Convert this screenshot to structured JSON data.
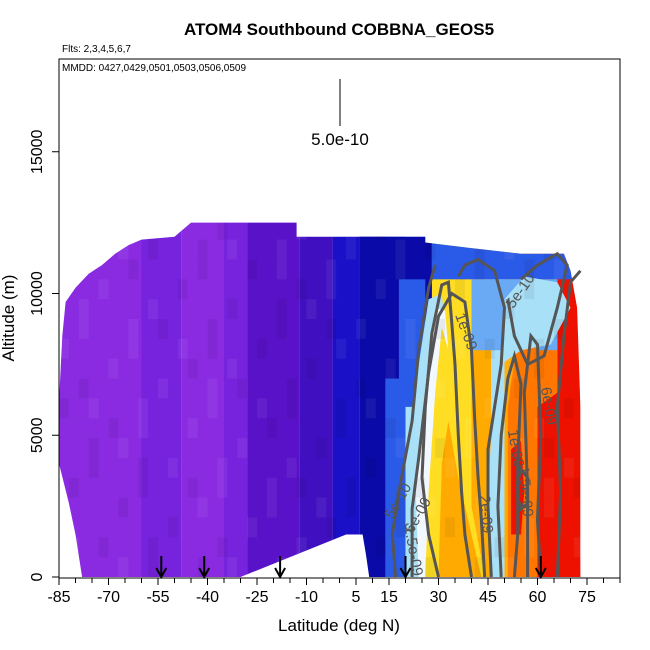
{
  "chart_data": {
    "type": "heatmap",
    "title": "ATOM4 Southbound COBBNA_GEOS5",
    "flights_text": "Flts: 2,3,4,5,6,7",
    "dates_text": "MMDD: 0427,0429,0501,0503,0506,0509",
    "xlabel": "Latitude (deg N)",
    "ylabel": "Altitude (m)",
    "xlim": [
      -85,
      85
    ],
    "ylim": [
      0,
      18000
    ],
    "x_ticks": [
      -85,
      -70,
      -55,
      -40,
      -25,
      -10,
      5,
      15,
      30,
      45,
      60,
      75
    ],
    "x_tick_labels": [
      "-85",
      "-70",
      "-55",
      "-40",
      "-25",
      "-10",
      "5",
      "15",
      "30",
      "45",
      "60",
      "75"
    ],
    "y_ticks": [
      0,
      5000,
      10000,
      15000
    ],
    "y_tick_labels": [
      "0",
      "5000",
      "10000",
      "15000"
    ],
    "scale_label": "5.0e-10",
    "scale_value": 5e-10,
    "colors": {
      "purple": "#8a2be2",
      "violet": "#7722dd",
      "indigo": "#5a12c8",
      "blue": "#1a10c8",
      "navy": "#0a0aa8",
      "mid_blue": "#2a5ae8",
      "light_blue": "#6aaaf5",
      "cyan": "#a8e0f8",
      "white": "#f2f8ff",
      "yellow": "#ffdd22",
      "gold": "#ffaa00",
      "orange": "#ff7700",
      "red": "#ee1100",
      "contour": "#555555"
    },
    "vertical_profile_latitudes": [
      -54,
      -41,
      -18,
      20,
      61
    ],
    "contours": [
      {
        "label": "5e-10",
        "level": 5e-10,
        "label_lat": 56,
        "label_alt": 10000
      },
      {
        "label": "1e-09",
        "level": 1e-09,
        "label_lat": 37,
        "label_alt": 8600
      },
      {
        "label": "6e-09",
        "level": 6e-09,
        "label_lat": 62,
        "label_alt": 6000
      },
      {
        "label": "1e-09",
        "level": 1e-09,
        "label_lat": 52,
        "label_alt": 4500
      },
      {
        "label": "1.5e-09",
        "level": 1.5e-09,
        "label_lat": 55,
        "label_alt": 3000
      },
      {
        "label": "5e-10",
        "level": 5e-10,
        "label_lat": 19,
        "label_alt": 2600
      },
      {
        "label": "6e-09",
        "level": 6e-09,
        "label_lat": 25,
        "label_alt": 2100
      },
      {
        "label": "2e-09",
        "level": 2e-09,
        "label_lat": 43,
        "label_alt": 2200
      },
      {
        "label": "1.5e-09",
        "level": 1.5e-09,
        "label_lat": 21,
        "label_alt": 900
      }
    ]
  }
}
